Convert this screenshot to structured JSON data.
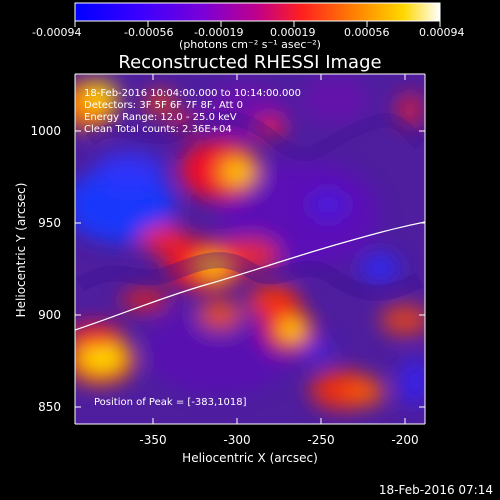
{
  "colorbar": {
    "ticks": [
      "-0.00094",
      "-0.00056",
      "-0.00019",
      "0.00019",
      "0.00056",
      "0.00094"
    ],
    "units": "(photons cm⁻² s⁻¹ asec⁻²)",
    "colors": [
      "#0033ff",
      "#6f00ff",
      "#b000b0",
      "#ff2a2a",
      "#ff8c00",
      "#ffe600",
      "#ffffff"
    ]
  },
  "image": {
    "title": "Reconstructed RHESSI Image",
    "info_lines": [
      "18-Feb-2016 10:04:00.000 to 10:14:00.000",
      "Detectors: 3F 5F 6F 7F 8F, Att 0",
      "Energy Range: 12.0 - 25.0 keV",
      "Clean    Total counts: 2.36E+04"
    ],
    "peak_label": "Position of Peak = [-383,1018]",
    "xlabel": "Heliocentric X (arcsec)",
    "ylabel": "Heliocentric Y (arcsec)",
    "xticks": [
      "-350",
      "-300",
      "-250",
      "-200"
    ],
    "yticks": [
      "1000",
      "950",
      "900",
      "850"
    ],
    "bottom_timestamp": "18-Feb-2016 07:14"
  }
}
